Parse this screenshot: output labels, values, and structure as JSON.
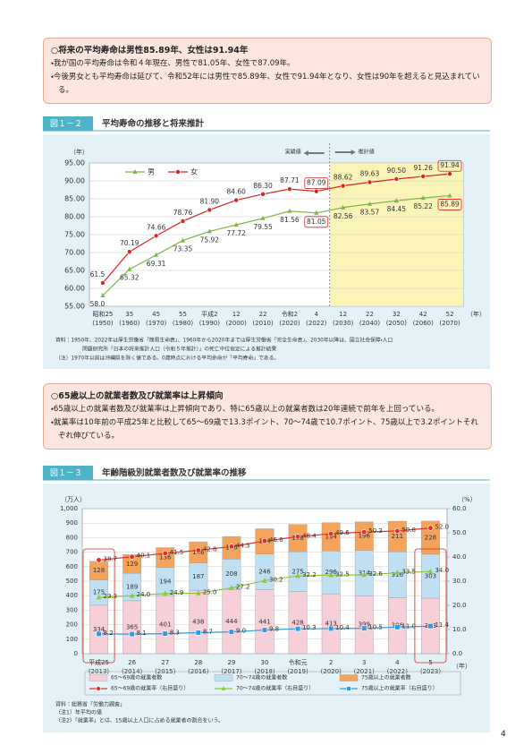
{
  "box1": {
    "heading": "○将来の平均寿命は男性85.89年、女性は91.94年",
    "bullets": [
      "・我が国の平均寿命は令和４年現在、男性で81.05年、女性で87.09年。",
      "・今後男女とも平均寿命は延びて、令和52年には男性で85.89年、女性で91.94年となり、女性は90年を超えると見込まれている。"
    ]
  },
  "box2": {
    "heading": "○65歳以上の就業者数及び就業率は上昇傾向",
    "bullets": [
      "・65歳以上の就業者数及び就業率は上昇傾向であり、特に65歳以上の就業者数は20年連続で前年を上回っている。",
      "・就業率は10年前の平成25年と比較して65～69歳で13.3ポイント、70～74歳で10.7ポイント、75歳以上で3.2ポイントそれぞれ伸びている。"
    ]
  },
  "page_number": "4",
  "chart_data": [
    {
      "type": "line",
      "figure_number": "図１－２",
      "title": "平均寿命の推移と将来推計",
      "y_unit": "（年）",
      "x_unit": "（年）",
      "actual_label": "実績値",
      "projection_label": "推計値",
      "categories": [
        "昭和25",
        "35",
        "45",
        "55",
        "平成2",
        "12",
        "22",
        "令和2",
        "4",
        "12",
        "22",
        "32",
        "42",
        "52"
      ],
      "category_years": [
        "(1950)",
        "(1960)",
        "(1970)",
        "(1980)",
        "(1990)",
        "(2000)",
        "(2010)",
        "(2020)",
        "(2022)",
        "(2030)",
        "(2040)",
        "(2050)",
        "(2060)",
        "(2070)"
      ],
      "ylim": [
        55,
        95
      ],
      "yticks": [
        {
          "value": 55,
          "label": "55.00"
        },
        {
          "value": 60,
          "label": "60.00"
        },
        {
          "value": 65,
          "label": "65.00"
        },
        {
          "value": 70,
          "label": "70.00"
        },
        {
          "value": 75,
          "label": "75.00"
        },
        {
          "value": 80,
          "label": "80.00"
        },
        {
          "value": 85,
          "label": "85.00"
        },
        {
          "value": 90,
          "label": "90.00"
        },
        {
          "value": 95,
          "label": "95.00"
        }
      ],
      "grid": true,
      "series": [
        {
          "name": "男",
          "color": "#7ab648",
          "marker": "triangle",
          "values": [
            58.0,
            65.32,
            69.31,
            73.35,
            75.92,
            77.72,
            79.55,
            81.56,
            81.05,
            82.56,
            83.57,
            84.45,
            85.22,
            85.89
          ],
          "value_labels": [
            "58.0",
            "65.32",
            "69.31",
            "73.35",
            "75.92",
            "77.72",
            "79.55",
            "81.56",
            "81.05",
            "82.56",
            "83.57",
            "84.45",
            "85.22",
            "85.89"
          ]
        },
        {
          "name": "女",
          "color": "#d7261e",
          "marker": "circle",
          "values": [
            61.5,
            70.19,
            74.66,
            78.76,
            81.9,
            84.6,
            86.3,
            87.71,
            87.09,
            88.62,
            89.63,
            90.5,
            91.26,
            91.94
          ],
          "value_labels": [
            "61.5",
            "70.19",
            "74.66",
            "78.76",
            "81.90",
            "84.60",
            "86.30",
            "87.71",
            "87.09",
            "88.62",
            "89.63",
            "90.50",
            "91.26",
            "91.94"
          ]
        }
      ],
      "notes": [
        "資料：1950年、2022年は厚生労働省「簡易生命表」、1960年から2020年までは厚生労働省「完全生命表」、2030年以降は、国立社会保障・人口",
        "問題研究所「日本の将来推計人口（令和５年推計）」の死亡中位仮定による推計結果",
        "（注）1970年以前は沖縄県を除く値である。0歳時点における平均余命が「平均寿命」である。"
      ]
    },
    {
      "type": "combo",
      "figure_number": "図１－３",
      "title": "年齢階級別就業者数及び就業率の推移",
      "y_unit": "（万人）",
      "y2_unit": "（%）",
      "x_unit": "（年）",
      "categories": [
        "平成25",
        "26",
        "27",
        "28",
        "29",
        "30",
        "令和元",
        "2",
        "3",
        "4",
        "5"
      ],
      "category_years": [
        "(2013)",
        "(2014)",
        "(2015)",
        "(2016)",
        "(2017)",
        "(2018)",
        "(2019)",
        "(2020)",
        "(2021)",
        "(2022)",
        "(2023)"
      ],
      "ylim": [
        0,
        1000
      ],
      "yticks": [
        0,
        100,
        200,
        300,
        400,
        500,
        600,
        700,
        800,
        900,
        {
          "value": 1000,
          "label": "1,000"
        }
      ],
      "y2lim": [
        0,
        60
      ],
      "y2ticks": [
        {
          "value": 0,
          "label": "0.0"
        },
        {
          "value": 10,
          "label": "10.0"
        },
        {
          "value": 20,
          "label": "20.0"
        },
        {
          "value": 30,
          "label": "30.0"
        },
        {
          "value": 40,
          "label": "40.0"
        },
        {
          "value": 50,
          "label": "50.0"
        },
        {
          "value": 60,
          "label": "60.0"
        }
      ],
      "grid": true,
      "series": [
        {
          "name": "65～69歳の就業者数",
          "kind": "bar",
          "color": "#f7cfd9",
          "values": [
            334,
            365,
            401,
            438,
            444,
            441,
            428,
            413,
            399,
            386,
            383
          ]
        },
        {
          "name": "70～74歳の就業者数",
          "kind": "bar",
          "color": "#bfe0f3",
          "values": [
            175,
            189,
            194,
            187,
            208,
            246,
            275,
            296,
            314,
            316,
            303
          ]
        },
        {
          "name": "75歳以上の就業者数",
          "kind": "bar",
          "color": "#f5a35a",
          "values": [
            128,
            129,
            136,
            146,
            156,
            174,
            188,
            194,
            196,
            211,
            228
          ]
        },
        {
          "name": "65～69歳の就業率（右目盛り）",
          "kind": "line",
          "axis": "y2",
          "color": "#e0302b",
          "marker": "circle",
          "values": [
            38.7,
            40.1,
            41.5,
            42.8,
            44.3,
            46.6,
            48.4,
            49.6,
            50.3,
            50.8,
            52.0
          ],
          "value_labels": [
            "38.7",
            "40.1",
            "41.5",
            "42.8",
            "44.3",
            "46.6",
            "48.4",
            "49.6",
            "50.3",
            "50.8",
            "52.0"
          ]
        },
        {
          "name": "70～74歳の就業率（右目盛り）",
          "kind": "line",
          "axis": "y2",
          "color": "#8dc63f",
          "marker": "triangle",
          "values": [
            23.3,
            24.0,
            24.9,
            25.0,
            27.2,
            30.2,
            32.2,
            32.5,
            32.6,
            33.5,
            34.0
          ],
          "value_labels": [
            "23.3",
            "24.0",
            "24.9",
            "25.0",
            "27.2",
            "30.2",
            "32.2",
            "32.5",
            "32.6",
            "33.5",
            "34.0"
          ]
        },
        {
          "name": "75歳以上の就業率（右目盛り）",
          "kind": "line",
          "axis": "y2",
          "color": "#2f9be0",
          "marker": "square",
          "values": [
            8.2,
            8.1,
            8.3,
            8.7,
            9.0,
            9.8,
            10.3,
            10.4,
            10.5,
            11.0,
            11.4
          ],
          "value_labels": [
            "8.2",
            "8.1",
            "8.3",
            "8.7",
            "9.0",
            "9.8",
            "10.3",
            "10.4",
            "10.5",
            "11.0",
            "11.4"
          ]
        }
      ],
      "notes": [
        "資料：総務省「労働力調査」",
        "（注1）年平均の値",
        "（注2）「就業率」とは、15歳以上人口に占める就業者の割合をいう。"
      ]
    }
  ]
}
